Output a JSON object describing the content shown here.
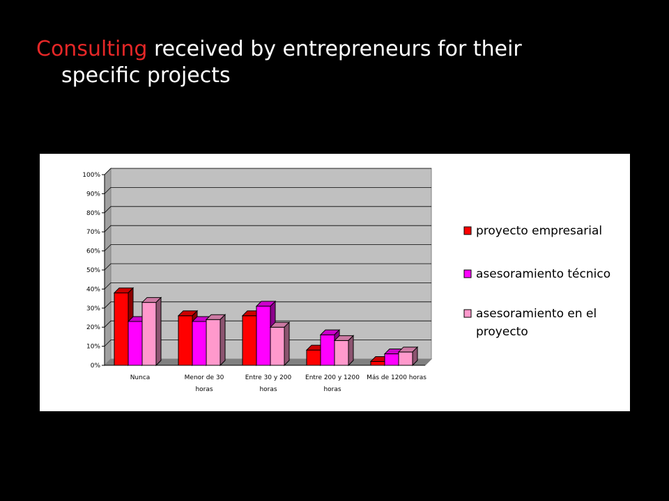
{
  "slide": {
    "title_accent": "Consulting",
    "title_rest": " received by entrepreneurs for their",
    "title_line2": "specific projects"
  },
  "colors": {
    "background": "#000000",
    "title_accent": "#e52727",
    "title_text": "#ffffff",
    "plot_wall": "#c0c0c0"
  },
  "chart_data": {
    "type": "bar",
    "ylim": [
      0,
      100
    ],
    "yticks": [
      "0%",
      "10%",
      "20%",
      "30%",
      "40%",
      "50%",
      "60%",
      "70%",
      "80%",
      "90%",
      "100%"
    ],
    "grid": true,
    "legend_position": "right",
    "categories": [
      [
        "Nunca"
      ],
      [
        "Menor de 30",
        "horas"
      ],
      [
        "Entre 30 y 200",
        "horas"
      ],
      [
        "Entre 200 y 1200",
        "horas"
      ],
      [
        "Más de 1200 horas"
      ]
    ],
    "series": [
      {
        "name": "proyecto empresarial",
        "name_lines": [
          "proyecto empresarial"
        ],
        "color": "#ff0000",
        "values": [
          38,
          26,
          26,
          8,
          2
        ]
      },
      {
        "name": "asesoramiento técnico",
        "name_lines": [
          "asesoramiento técnico"
        ],
        "color": "#ff00ff",
        "values": [
          23,
          23,
          31,
          16,
          6
        ]
      },
      {
        "name": "asesoramiento en el proyecto",
        "name_lines": [
          "asesoramiento en el",
          "proyecto"
        ],
        "color": "#ff99cc",
        "values": [
          33,
          24,
          20,
          13,
          7
        ]
      }
    ]
  }
}
